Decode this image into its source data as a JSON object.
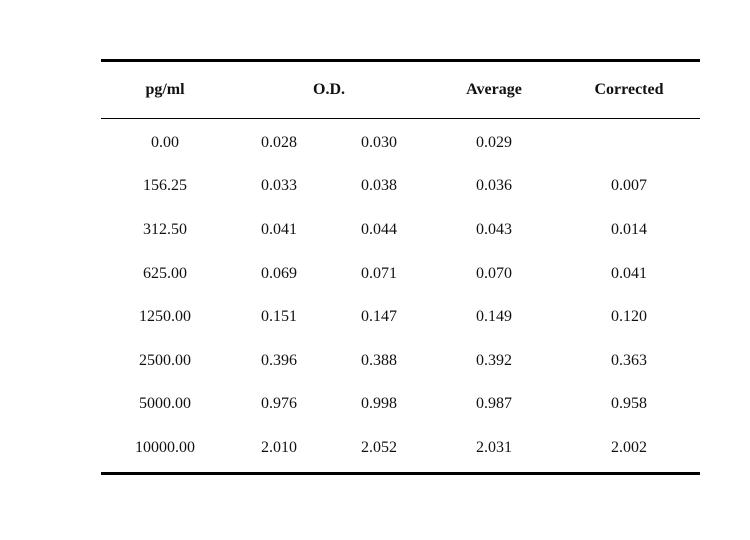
{
  "table": {
    "headers": {
      "concentration": "pg/ml",
      "od": "O.D.",
      "average": "Average",
      "corrected": "Corrected"
    },
    "rows": [
      {
        "conc": "0.00",
        "od1": "0.028",
        "od2": "0.030",
        "avg": "0.029",
        "corr": ""
      },
      {
        "conc": "156.25",
        "od1": "0.033",
        "od2": "0.038",
        "avg": "0.036",
        "corr": "0.007"
      },
      {
        "conc": "312.50",
        "od1": "0.041",
        "od2": "0.044",
        "avg": "0.043",
        "corr": "0.014"
      },
      {
        "conc": "625.00",
        "od1": "0.069",
        "od2": "0.071",
        "avg": "0.070",
        "corr": "0.041"
      },
      {
        "conc": "1250.00",
        "od1": "0.151",
        "od2": "0.147",
        "avg": "0.149",
        "corr": "0.120"
      },
      {
        "conc": "2500.00",
        "od1": "0.396",
        "od2": "0.388",
        "avg": "0.392",
        "corr": "0.363"
      },
      {
        "conc": "5000.00",
        "od1": "0.976",
        "od2": "0.998",
        "avg": "0.987",
        "corr": "0.958"
      },
      {
        "conc": "10000.00",
        "od1": "2.010",
        "od2": "2.052",
        "avg": "2.031",
        "corr": "2.002"
      }
    ]
  }
}
